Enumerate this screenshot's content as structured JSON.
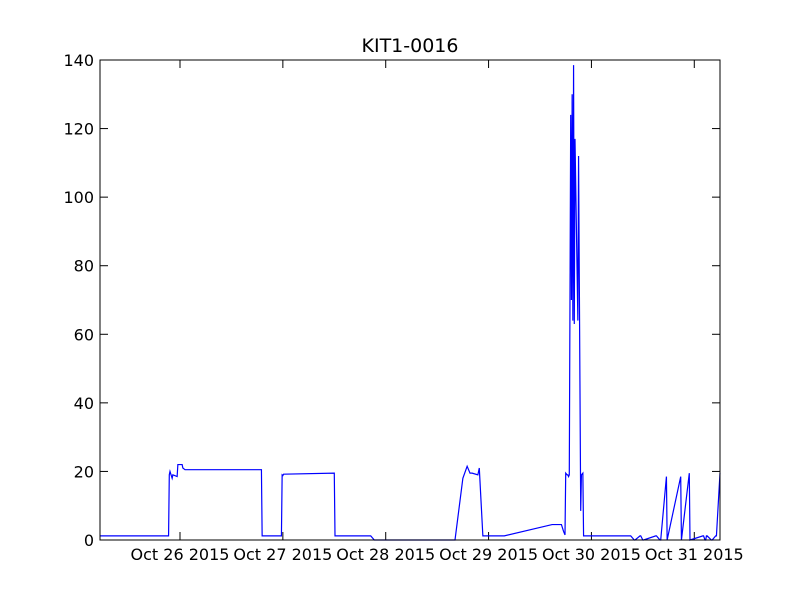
{
  "chart_data": {
    "type": "line",
    "title": "KIT1-0016",
    "xlabel": "",
    "ylabel": "",
    "x_range": [
      "2015-10-25 05:20",
      "2015-10-31 06:00"
    ],
    "ylim": [
      0,
      140
    ],
    "yticks": [
      0,
      20,
      40,
      60,
      80,
      100,
      120,
      140
    ],
    "xticks": [
      {
        "value": "2015-10-26 00:00",
        "label": "Oct 26 2015"
      },
      {
        "value": "2015-10-27 00:00",
        "label": "Oct 27 2015"
      },
      {
        "value": "2015-10-28 00:00",
        "label": "Oct 28 2015"
      },
      {
        "value": "2015-10-29 00:00",
        "label": "Oct 29 2015"
      },
      {
        "value": "2015-10-30 00:00",
        "label": "Oct 30 2015"
      },
      {
        "value": "2015-10-31 00:00",
        "label": "Oct 31 2015"
      }
    ],
    "grid": false,
    "legend": "none",
    "series": [
      {
        "color": "#0000ff",
        "x": [
          "2015-10-25 05:20",
          "2015-10-25 21:20",
          "2015-10-25 21:30",
          "2015-10-25 21:40",
          "2015-10-25 22:10",
          "2015-10-25 22:20",
          "2015-10-25 23:20",
          "2015-10-25 23:30",
          "2015-10-26 00:30",
          "2015-10-26 00:40",
          "2015-10-26 01:10",
          "2015-10-26 19:00",
          "2015-10-26 19:10",
          "2015-10-26 20:20",
          "2015-10-26 23:40",
          "2015-10-26 23:50",
          "2015-10-27 00:00",
          "2015-10-27 00:10",
          "2015-10-27 12:00",
          "2015-10-27 12:10",
          "2015-10-27 18:40",
          "2015-10-27 19:50",
          "2015-10-27 20:30",
          "2015-10-27 21:20",
          "2015-10-27 22:30",
          "2015-10-27 23:00",
          "2015-10-27 23:10",
          "2015-10-27 23:20",
          "2015-10-28 16:00",
          "2015-10-28 16:10",
          "2015-10-28 18:00",
          "2015-10-28 19:00",
          "2015-10-28 19:30",
          "2015-10-28 19:40",
          "2015-10-28 20:10",
          "2015-10-28 21:30",
          "2015-10-28 21:50",
          "2015-10-28 22:40",
          "2015-10-28 22:50",
          "2015-10-28 23:00",
          "2015-10-28 23:10",
          "2015-10-28 23:20",
          "2015-10-28 23:30",
          "2015-10-28 23:40",
          "2015-10-28 23:50",
          "2015-10-29 00:00",
          "2015-10-29 00:10",
          "2015-10-29 00:20",
          "2015-10-29 00:30",
          "2015-10-29 00:40",
          "2015-10-29 00:50",
          "2015-10-29 01:00",
          "2015-10-29 01:10",
          "2015-10-29 01:20",
          "2015-10-29 01:40",
          "2015-10-29 02:20",
          "2015-10-29 02:30",
          "2015-10-29 02:40",
          "2015-10-29 02:50",
          "2015-10-29 03:40",
          "2015-10-29 14:50",
          "2015-10-29 15:00",
          "2015-10-29 16:50",
          "2015-10-29 17:00",
          "2015-10-29 17:30",
          "2015-10-29 17:40",
          "2015-10-29 17:50",
          "2015-10-29 18:00",
          "2015-10-29 18:20",
          "2015-10-29 18:30",
          "2015-10-29 18:40",
          "2015-10-29 18:50",
          "2015-10-29 19:10",
          "2015-10-29 19:20",
          "2015-10-29 19:30",
          "2015-10-29 19:40",
          "2015-10-29 19:50",
          "2015-10-29 20:00",
          "2015-10-29 20:10",
          "2015-10-29 20:50",
          "2015-10-29 21:00",
          "2015-10-29 21:30",
          "2015-10-29 21:40",
          "2015-10-29 22:00",
          "2015-10-29 22:10",
          "2015-10-29 22:30",
          "2015-10-29 22:40",
          "2015-10-29 22:50",
          "2015-10-29 23:00",
          "2015-10-29 23:10",
          "2015-10-30 00:10",
          "2015-10-30 00:20",
          "2015-10-30 00:50",
          "2015-10-30 01:00",
          "2015-10-30 01:20",
          "2015-10-30 01:30",
          "2015-10-30 02:00",
          "2015-10-30 02:10",
          "2015-10-30 05:00",
          "2015-10-30 05:10",
          "2015-10-30 07:00",
          "2015-10-30 07:10",
          "2015-10-30 09:00",
          "2015-10-30 09:10",
          "2015-10-30 10:00",
          "2015-10-30 10:10",
          "2015-10-30 11:20",
          "2015-10-30 11:30",
          "2015-10-30 12:00",
          "2015-10-30 12:10",
          "2015-10-30 15:00",
          "2015-10-30 15:10",
          "2015-10-30 16:00",
          "2015-10-30 16:10",
          "2015-10-30 17:30",
          "2015-10-30 17:40",
          "2015-10-30 20:50",
          "2015-10-30 21:00",
          "2015-10-30 22:50",
          "2015-10-30 23:00",
          "2015-10-31 02:00",
          "2015-10-31 02:10",
          "2015-10-31 02:30",
          "2015-10-31 02:40",
          "2015-10-31 02:50",
          "2015-10-31 03:00",
          "2015-10-31 04:00",
          "2015-10-31 04:10",
          "2015-10-31 05:00",
          "2015-10-31 05:10",
          "2015-10-31 06:00"
        ],
        "y": [
          1.2,
          1.2,
          19,
          20,
          18,
          19,
          18.5,
          22,
          22,
          21,
          20.5,
          20.5,
          1.2,
          1.2,
          1.2,
          19,
          18.8,
          19.2,
          19.5,
          1.2,
          1.2,
          1.2,
          1.2,
          0,
          0,
          0,
          0,
          0,
          0,
          0,
          18,
          21.5,
          20,
          19.5,
          19.5,
          19,
          21,
          1.2,
          1.2,
          1.2,
          1.2,
          1.2,
          1.2,
          1.2,
          1.2,
          1.2,
          1.2,
          1.2,
          1.2,
          1.2,
          1.2,
          1.2,
          1.2,
          1.2,
          1.2,
          1.2,
          1.2,
          1.2,
          1.2,
          1.2,
          4.5,
          4.5,
          4.5,
          4.5,
          2.5,
          2,
          1.5,
          19.5,
          19,
          19,
          18.5,
          19,
          124,
          70,
          130,
          64,
          138.5,
          63,
          117,
          64,
          112,
          8.5,
          19,
          19.5,
          1.2,
          1.2,
          1.2,
          1.2,
          1.2,
          1.2,
          1.2,
          1.2,
          1.2,
          1.2,
          1.2,
          1.2,
          1.2,
          1.2,
          1.2,
          1.2,
          1.2,
          1.2,
          1.2,
          1.2,
          0,
          0,
          1.2,
          1.2,
          0,
          0,
          1.2,
          1.2,
          0,
          0,
          18.5,
          0,
          18.5,
          0,
          19.5,
          0,
          1.2,
          1.2,
          0,
          0,
          1.2,
          1.2,
          0,
          0,
          1.2,
          1.2,
          19.5
        ]
      }
    ]
  }
}
